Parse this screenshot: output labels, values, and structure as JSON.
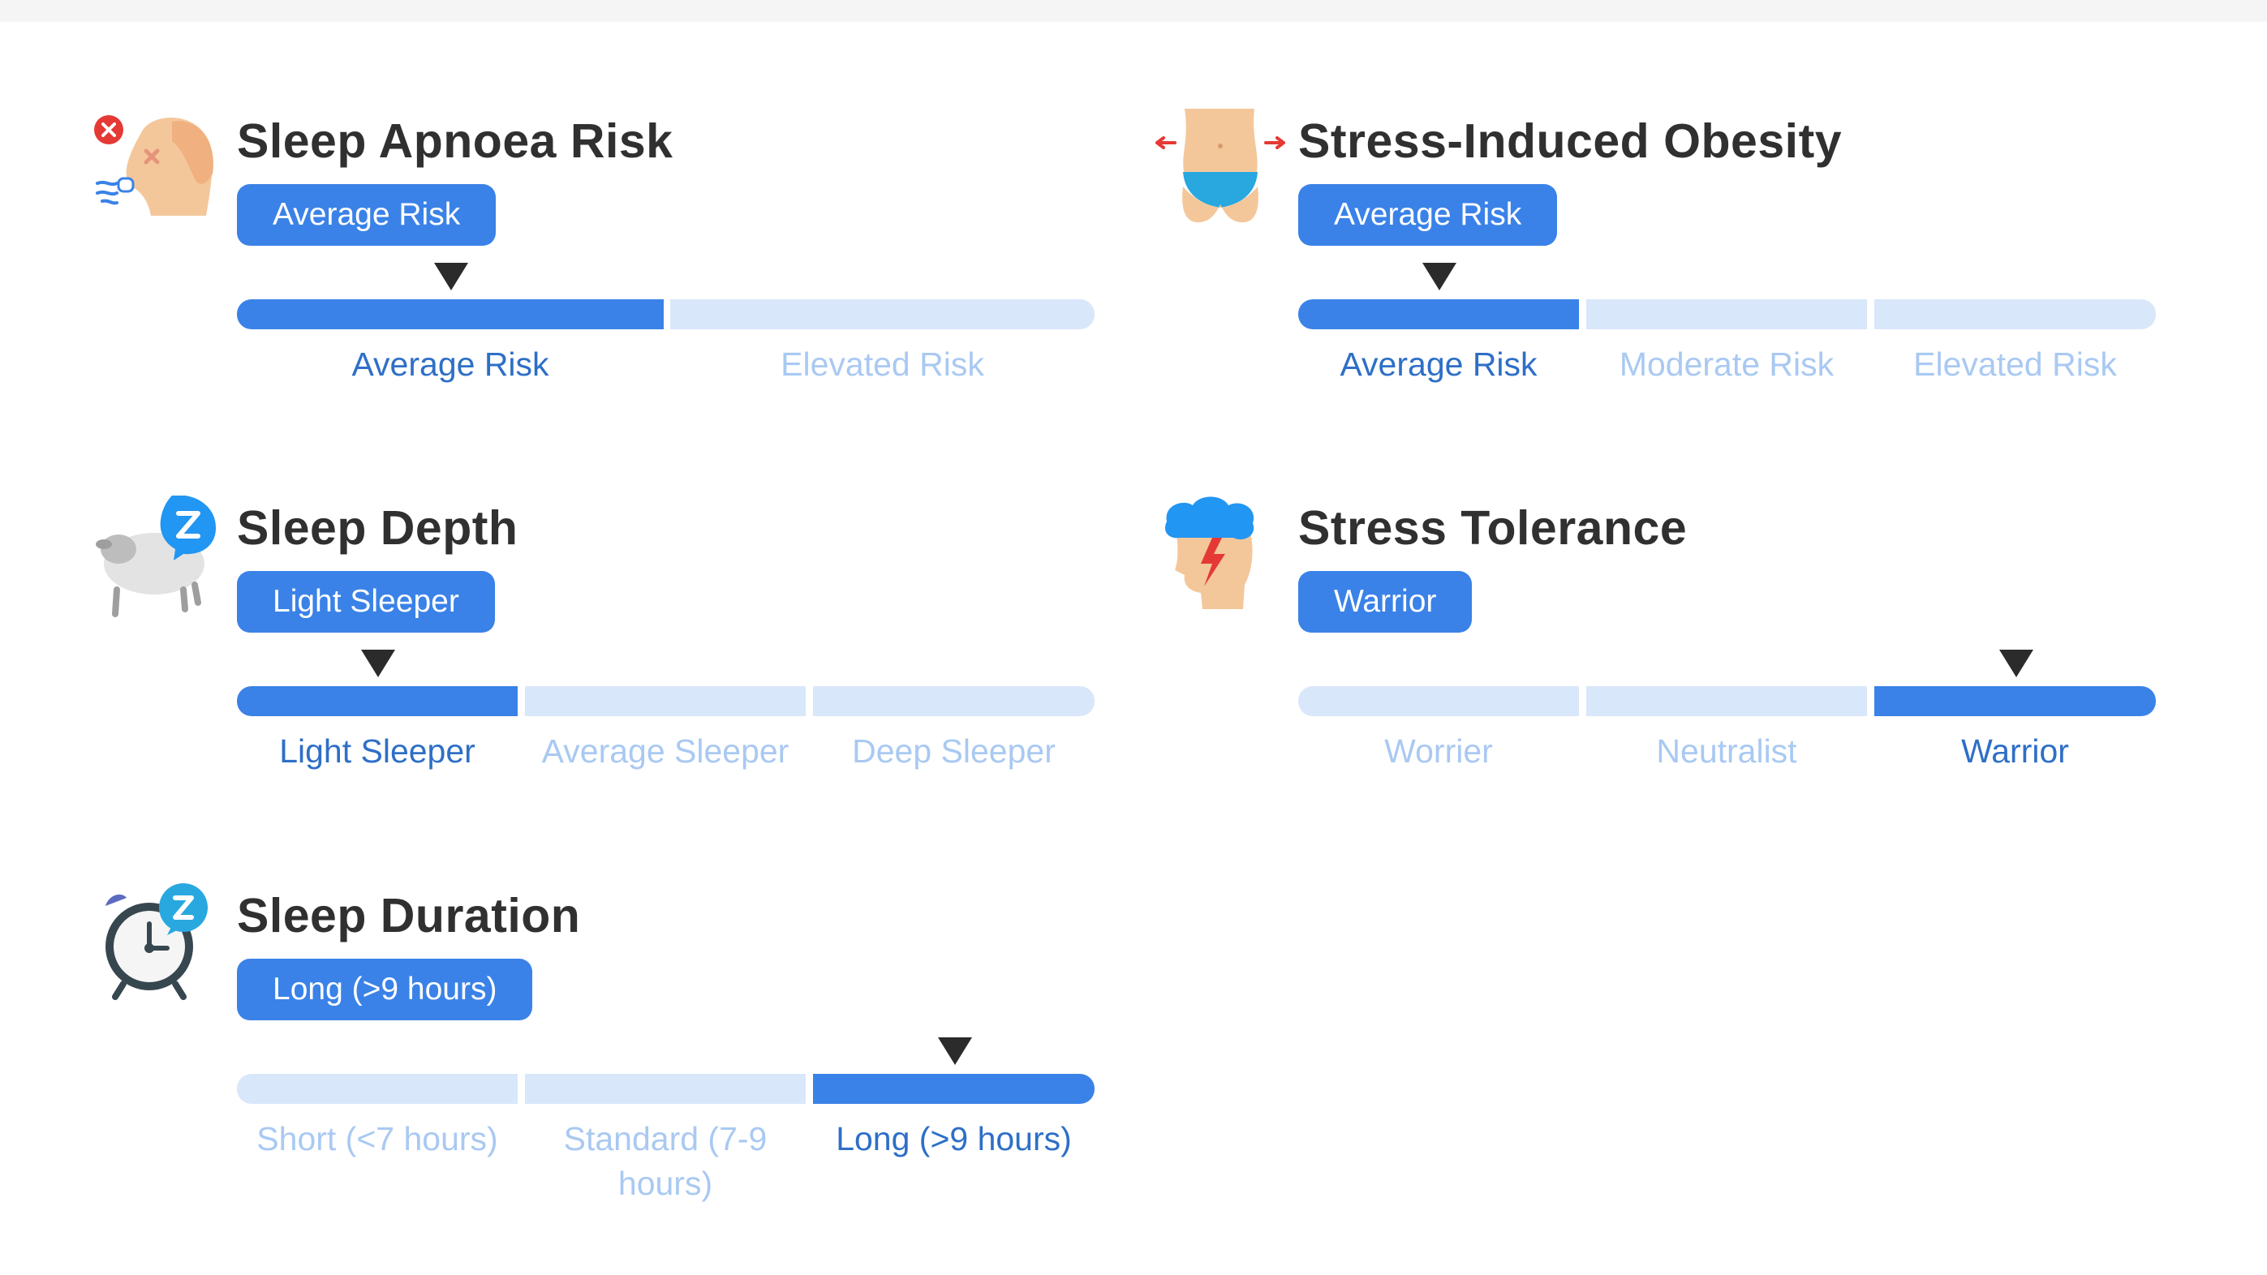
{
  "cards": [
    {
      "title": "Sleep Apnoea Risk",
      "badge": "Average Risk",
      "icon": "sleep-apnoea-face-icon",
      "scale_labels": [
        "Average Risk",
        "Elevated Risk"
      ],
      "selected": "Average Risk"
    },
    {
      "title": "Stress-Induced Obesity",
      "badge": "Average Risk",
      "icon": "waist-measure-icon",
      "scale_labels": [
        "Average Risk",
        "Moderate Risk",
        "Elevated Risk"
      ],
      "selected": "Average Risk"
    },
    {
      "title": "Sleep Depth",
      "badge": "Light Sleeper",
      "icon": "sheep-sleep-icon",
      "scale_labels": [
        "Light Sleeper",
        "Average Sleeper",
        "Deep Sleeper"
      ],
      "selected": "Light Sleeper"
    },
    {
      "title": "Stress Tolerance",
      "badge": "Warrior",
      "icon": "stressed-head-icon",
      "scale_labels": [
        "Worrier",
        "Neutralist",
        "Warrior"
      ],
      "selected": "Warrior"
    },
    {
      "title": "Sleep Duration",
      "badge": "Long (>9 hours)",
      "icon": "alarm-clock-sleep-icon",
      "scale_labels": [
        "Short (<7 hours)",
        "Standard (7-9 hours)",
        "Long (>9 hours)"
      ],
      "selected": "Long (>9 hours)"
    }
  ],
  "colors": {
    "accent": "#3a82e8",
    "track_inactive": "#d9e7fa",
    "label_active": "#2e6fc7",
    "label_inactive": "#a9c9f2",
    "title": "#303030",
    "marker": "#2b2b2b"
  }
}
